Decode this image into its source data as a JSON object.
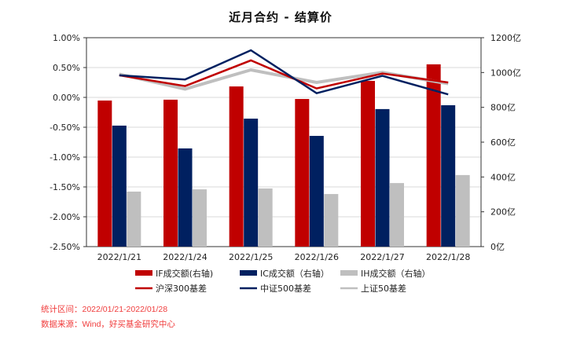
{
  "chart_data": {
    "type": "bar+line",
    "title": "近月合约 - 结算价",
    "categories": [
      "2022/1/21",
      "2022/1/24",
      "2022/1/25",
      "2022/1/26",
      "2022/1/27",
      "2022/1/28"
    ],
    "left_axis": {
      "ylim": [
        -2.5,
        1.0
      ],
      "ticks": [
        "1.00%",
        "0.50%",
        "0.00%",
        "-0.50%",
        "-1.00%",
        "-1.50%",
        "-2.00%",
        "-2.50%"
      ],
      "unit": "%"
    },
    "right_axis": {
      "ylim": [
        0,
        1200
      ],
      "ticks": [
        "1200亿",
        "1000亿",
        "800亿",
        "600亿",
        "400亿",
        "200亿",
        "0亿"
      ],
      "unit": "亿"
    },
    "bar_series": [
      {
        "name": "IF成交额(右轴)",
        "color": "#c00000",
        "values": [
          839,
          844,
          920,
          848,
          952,
          1047
        ]
      },
      {
        "name": "IC成交额（右轴）",
        "color": "#002060",
        "values": [
          695,
          564,
          735,
          636,
          790,
          812
        ]
      },
      {
        "name": "IH成交额（右轴）",
        "color": "#bfbfbf",
        "values": [
          316,
          329,
          334,
          302,
          365,
          411
        ]
      }
    ],
    "line_series": [
      {
        "name": "沪深300基差",
        "color": "#c00000",
        "values": [
          0.37,
          0.19,
          0.62,
          0.15,
          0.4,
          0.25
        ]
      },
      {
        "name": "中证500基差",
        "color": "#002060",
        "values": [
          0.37,
          0.3,
          0.79,
          0.07,
          0.36,
          0.05
        ]
      },
      {
        "name": "上证50基差",
        "color": "#bfbfbf",
        "values": [
          0.39,
          0.14,
          0.46,
          0.25,
          0.42,
          0.23
        ]
      }
    ],
    "grid": true,
    "legend_position": "bottom"
  },
  "notes": {
    "period": "统计区间：2022/01/21-2022/01/28",
    "source": "数据来源：Wind，好买基金研究中心"
  }
}
